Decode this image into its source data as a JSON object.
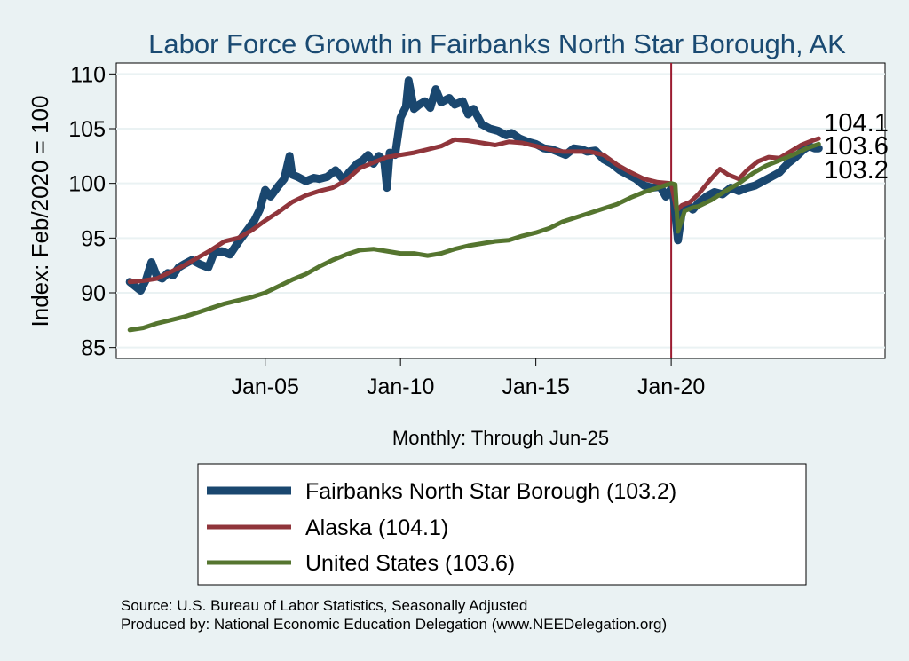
{
  "chart_data": {
    "type": "line",
    "title": "Labor Force Growth in Fairbanks North Star Borough, AK",
    "ylabel": "Index: Feb/2020 = 100",
    "xlabel": "Monthly: Through Jun-25",
    "ylim": [
      84,
      111
    ],
    "yticks": [
      85,
      90,
      95,
      100,
      105,
      110
    ],
    "xticks": [
      {
        "label": "Jan-05",
        "x": 2005.0
      },
      {
        "label": "Jan-10",
        "x": 2010.0
      },
      {
        "label": "Jan-15",
        "x": 2015.0
      },
      {
        "label": "Jan-20",
        "x": 2020.0
      }
    ],
    "xlim": [
      1999.5,
      2027.9
    ],
    "reference_line": {
      "x": 2020.0,
      "color": "#9b1b30"
    },
    "grid": true,
    "legend_placement": "bottom",
    "series": [
      {
        "name": "Fairbanks North Star Borough  (103.2)",
        "legend_label": "Fairbanks North Star Borough  (103.2)",
        "end_value": "103.2",
        "color": "#1a476f",
        "width": 9,
        "points": [
          [
            2000.0,
            91.0
          ],
          [
            2000.2,
            90.6
          ],
          [
            2000.4,
            90.2
          ],
          [
            2000.6,
            91.2
          ],
          [
            2000.8,
            92.8
          ],
          [
            2001.0,
            91.5
          ],
          [
            2001.2,
            91.3
          ],
          [
            2001.4,
            91.8
          ],
          [
            2001.6,
            91.6
          ],
          [
            2001.8,
            92.3
          ],
          [
            2002.0,
            92.6
          ],
          [
            2002.3,
            93.0
          ],
          [
            2002.6,
            92.6
          ],
          [
            2002.9,
            92.3
          ],
          [
            2003.1,
            93.6
          ],
          [
            2003.4,
            93.8
          ],
          [
            2003.7,
            93.5
          ],
          [
            2004.0,
            94.6
          ],
          [
            2004.3,
            95.6
          ],
          [
            2004.6,
            96.6
          ],
          [
            2004.8,
            97.6
          ],
          [
            2005.0,
            99.4
          ],
          [
            2005.2,
            98.8
          ],
          [
            2005.5,
            99.8
          ],
          [
            2005.7,
            100.4
          ],
          [
            2005.9,
            102.5
          ],
          [
            2006.0,
            100.8
          ],
          [
            2006.2,
            100.6
          ],
          [
            2006.5,
            100.2
          ],
          [
            2006.8,
            100.5
          ],
          [
            2007.0,
            100.4
          ],
          [
            2007.3,
            100.6
          ],
          [
            2007.6,
            101.2
          ],
          [
            2007.9,
            100.3
          ],
          [
            2008.1,
            101.0
          ],
          [
            2008.4,
            101.8
          ],
          [
            2008.6,
            102.1
          ],
          [
            2008.8,
            102.6
          ],
          [
            2009.0,
            101.8
          ],
          [
            2009.2,
            102.5
          ],
          [
            2009.4,
            102.0
          ],
          [
            2009.5,
            99.6
          ],
          [
            2009.6,
            102.8
          ],
          [
            2009.8,
            102.6
          ],
          [
            2010.0,
            106.0
          ],
          [
            2010.2,
            107.0
          ],
          [
            2010.3,
            109.4
          ],
          [
            2010.5,
            106.8
          ],
          [
            2010.7,
            107.2
          ],
          [
            2010.9,
            107.5
          ],
          [
            2011.1,
            106.9
          ],
          [
            2011.3,
            108.6
          ],
          [
            2011.5,
            107.4
          ],
          [
            2011.8,
            107.8
          ],
          [
            2012.0,
            107.2
          ],
          [
            2012.3,
            107.5
          ],
          [
            2012.5,
            106.3
          ],
          [
            2012.7,
            106.8
          ],
          [
            2013.0,
            105.4
          ],
          [
            2013.3,
            105.0
          ],
          [
            2013.6,
            104.8
          ],
          [
            2013.9,
            104.4
          ],
          [
            2014.1,
            104.6
          ],
          [
            2014.4,
            104.1
          ],
          [
            2014.7,
            103.8
          ],
          [
            2015.0,
            103.6
          ],
          [
            2015.3,
            103.2
          ],
          [
            2015.6,
            103.1
          ],
          [
            2015.9,
            102.8
          ],
          [
            2016.1,
            102.6
          ],
          [
            2016.4,
            103.2
          ],
          [
            2016.7,
            103.1
          ],
          [
            2016.9,
            102.9
          ],
          [
            2017.2,
            103.0
          ],
          [
            2017.5,
            102.2
          ],
          [
            2017.8,
            101.8
          ],
          [
            2018.1,
            101.2
          ],
          [
            2018.4,
            100.8
          ],
          [
            2018.7,
            100.4
          ],
          [
            2019.0,
            99.8
          ],
          [
            2019.3,
            99.6
          ],
          [
            2019.6,
            99.7
          ],
          [
            2019.8,
            98.8
          ],
          [
            2020.0,
            99.5
          ],
          [
            2020.1,
            98.5
          ],
          [
            2020.25,
            94.8
          ],
          [
            2020.4,
            97.5
          ],
          [
            2020.6,
            98.0
          ],
          [
            2020.8,
            97.6
          ],
          [
            2021.0,
            98.2
          ],
          [
            2021.3,
            98.8
          ],
          [
            2021.6,
            99.2
          ],
          [
            2021.9,
            99.0
          ],
          [
            2022.2,
            99.6
          ],
          [
            2022.5,
            99.3
          ],
          [
            2022.8,
            99.6
          ],
          [
            2023.1,
            99.8
          ],
          [
            2023.4,
            100.2
          ],
          [
            2023.7,
            100.6
          ],
          [
            2024.0,
            101.0
          ],
          [
            2024.3,
            101.8
          ],
          [
            2024.6,
            102.4
          ],
          [
            2024.9,
            103.1
          ],
          [
            2025.1,
            103.4
          ],
          [
            2025.3,
            103.2
          ],
          [
            2025.45,
            103.2
          ]
        ]
      },
      {
        "name": "Alaska (104.1)",
        "legend_label": "Alaska (104.1)",
        "end_value": "104.1",
        "color": "#90353b",
        "width": 5,
        "points": [
          [
            2000.0,
            91.0
          ],
          [
            2000.5,
            91.1
          ],
          [
            2001.0,
            91.3
          ],
          [
            2001.5,
            91.9
          ],
          [
            2002.0,
            92.5
          ],
          [
            2002.5,
            93.2
          ],
          [
            2003.0,
            93.9
          ],
          [
            2003.5,
            94.7
          ],
          [
            2004.0,
            95.0
          ],
          [
            2004.5,
            95.7
          ],
          [
            2005.0,
            96.6
          ],
          [
            2005.5,
            97.4
          ],
          [
            2006.0,
            98.3
          ],
          [
            2006.5,
            98.9
          ],
          [
            2007.0,
            99.3
          ],
          [
            2007.5,
            99.6
          ],
          [
            2008.0,
            100.3
          ],
          [
            2008.5,
            101.4
          ],
          [
            2009.0,
            101.9
          ],
          [
            2009.5,
            102.4
          ],
          [
            2010.0,
            102.6
          ],
          [
            2010.5,
            102.8
          ],
          [
            2011.0,
            103.1
          ],
          [
            2011.5,
            103.4
          ],
          [
            2012.0,
            104.0
          ],
          [
            2012.5,
            103.9
          ],
          [
            2013.0,
            103.7
          ],
          [
            2013.5,
            103.5
          ],
          [
            2014.0,
            103.8
          ],
          [
            2014.5,
            103.7
          ],
          [
            2015.0,
            103.4
          ],
          [
            2015.5,
            103.1
          ],
          [
            2016.0,
            102.9
          ],
          [
            2016.5,
            102.9
          ],
          [
            2017.0,
            102.9
          ],
          [
            2017.5,
            102.6
          ],
          [
            2018.0,
            101.7
          ],
          [
            2018.5,
            101.0
          ],
          [
            2019.0,
            100.4
          ],
          [
            2019.5,
            100.1
          ],
          [
            2020.0,
            100.0
          ],
          [
            2020.2,
            97.5
          ],
          [
            2020.4,
            98.0
          ],
          [
            2020.7,
            98.3
          ],
          [
            2021.0,
            99.0
          ],
          [
            2021.4,
            100.2
          ],
          [
            2021.8,
            101.3
          ],
          [
            2022.1,
            100.8
          ],
          [
            2022.5,
            100.4
          ],
          [
            2022.8,
            101.2
          ],
          [
            2023.2,
            102.0
          ],
          [
            2023.6,
            102.4
          ],
          [
            2024.0,
            102.3
          ],
          [
            2024.4,
            102.9
          ],
          [
            2024.8,
            103.5
          ],
          [
            2025.2,
            103.9
          ],
          [
            2025.45,
            104.1
          ]
        ]
      },
      {
        "name": "United States (103.6)",
        "legend_label": "United States (103.6)",
        "end_value": "103.6",
        "color": "#55752f",
        "width": 5,
        "points": [
          [
            2000.0,
            86.6
          ],
          [
            2000.5,
            86.8
          ],
          [
            2001.0,
            87.2
          ],
          [
            2001.5,
            87.5
          ],
          [
            2002.0,
            87.8
          ],
          [
            2002.5,
            88.2
          ],
          [
            2003.0,
            88.6
          ],
          [
            2003.5,
            89.0
          ],
          [
            2004.0,
            89.3
          ],
          [
            2004.5,
            89.6
          ],
          [
            2005.0,
            90.0
          ],
          [
            2005.5,
            90.6
          ],
          [
            2006.0,
            91.2
          ],
          [
            2006.5,
            91.7
          ],
          [
            2007.0,
            92.4
          ],
          [
            2007.5,
            93.0
          ],
          [
            2008.0,
            93.5
          ],
          [
            2008.5,
            93.9
          ],
          [
            2009.0,
            94.0
          ],
          [
            2009.5,
            93.8
          ],
          [
            2010.0,
            93.6
          ],
          [
            2010.5,
            93.6
          ],
          [
            2011.0,
            93.4
          ],
          [
            2011.5,
            93.6
          ],
          [
            2012.0,
            94.0
          ],
          [
            2012.5,
            94.3
          ],
          [
            2013.0,
            94.5
          ],
          [
            2013.5,
            94.7
          ],
          [
            2014.0,
            94.8
          ],
          [
            2014.5,
            95.2
          ],
          [
            2015.0,
            95.5
          ],
          [
            2015.5,
            95.9
          ],
          [
            2016.0,
            96.5
          ],
          [
            2016.5,
            96.9
          ],
          [
            2017.0,
            97.3
          ],
          [
            2017.5,
            97.7
          ],
          [
            2018.0,
            98.1
          ],
          [
            2018.5,
            98.7
          ],
          [
            2019.0,
            99.2
          ],
          [
            2019.5,
            99.6
          ],
          [
            2020.0,
            100.0
          ],
          [
            2020.15,
            99.9
          ],
          [
            2020.25,
            95.6
          ],
          [
            2020.5,
            97.5
          ],
          [
            2020.8,
            97.8
          ],
          [
            2021.0,
            97.9
          ],
          [
            2021.5,
            98.5
          ],
          [
            2022.0,
            99.3
          ],
          [
            2022.5,
            100.0
          ],
          [
            2023.0,
            100.9
          ],
          [
            2023.5,
            101.6
          ],
          [
            2024.0,
            102.1
          ],
          [
            2024.5,
            102.6
          ],
          [
            2025.0,
            103.2
          ],
          [
            2025.45,
            103.6
          ]
        ]
      }
    ]
  },
  "source_line": "Source: U.S. Bureau of Labor Statistics, Seasonally Adjusted",
  "produced_line": "Produced by: National Economic Education Delegation (www.NEEDelegation.org)"
}
